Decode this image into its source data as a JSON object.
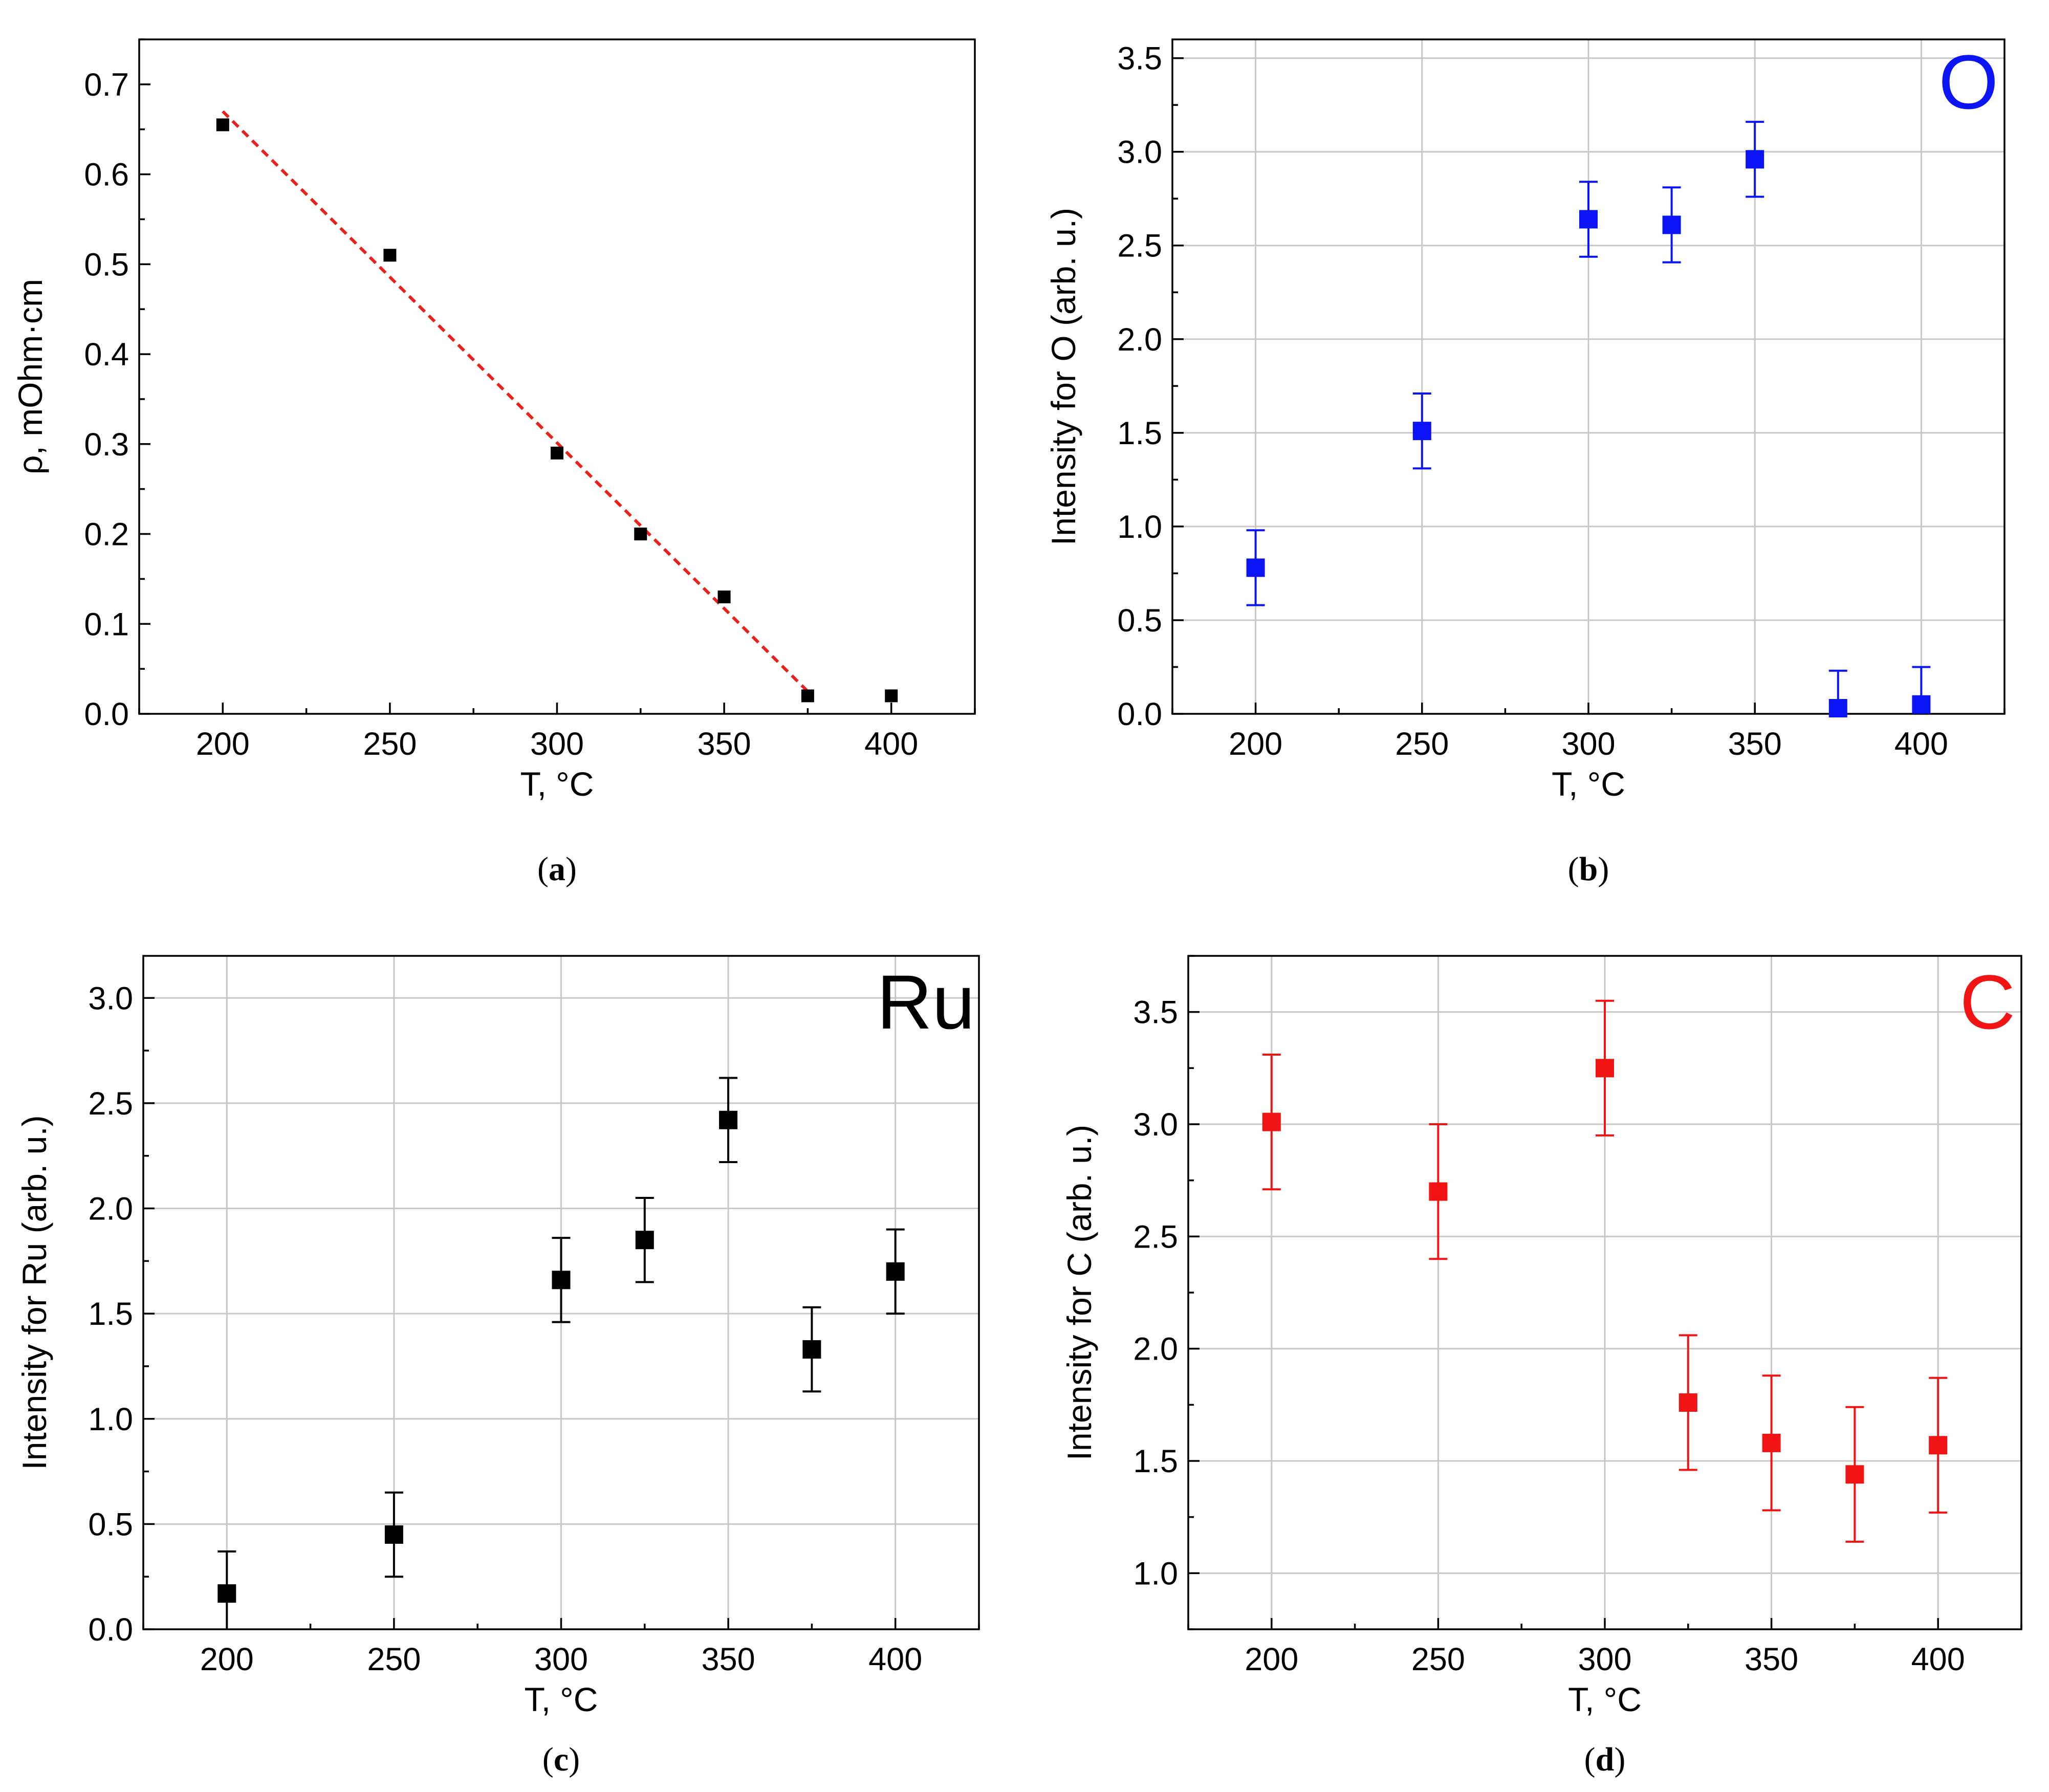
{
  "chart_data": [
    {
      "id": "a",
      "type": "scatter",
      "caption_letter": "a",
      "xlabel": "T, °C",
      "ylabel": "ρ, mOhm·cm",
      "xlim": [
        175,
        425
      ],
      "ylim": [
        0,
        0.75
      ],
      "xticks": [
        200,
        250,
        300,
        350,
        400
      ],
      "xtick_labels": [
        "200",
        "250",
        "300",
        "350",
        "400"
      ],
      "yticks": [
        0,
        0.1,
        0.2,
        0.3,
        0.4,
        0.5,
        0.6,
        0.7
      ],
      "ytick_labels": [
        "0.0",
        "0.1",
        "0.2",
        "0.3",
        "0.4",
        "0.5",
        "0.6",
        "0.7"
      ],
      "grid": false,
      "marker_color": "#000000",
      "series": [
        {
          "name": "resistivity",
          "x": [
            200,
            250,
            300,
            325,
            350,
            375,
            400
          ],
          "y": [
            0.655,
            0.51,
            0.29,
            0.2,
            0.13,
            0.02,
            0.02
          ]
        }
      ],
      "fit_line": {
        "x": [
          200,
          375
        ],
        "y": [
          0.67,
          0.025
        ],
        "color": "#e8211d",
        "style": "dashed"
      }
    },
    {
      "id": "b",
      "type": "scatter",
      "caption_letter": "b",
      "xlabel": "T, °C",
      "ylabel": "Intensity for O (arb. u.)",
      "element_label": "O",
      "xlim": [
        175,
        425
      ],
      "ylim": [
        0,
        3.6
      ],
      "xticks": [
        200,
        250,
        300,
        350,
        400
      ],
      "xtick_labels": [
        "200",
        "250",
        "300",
        "350",
        "400"
      ],
      "yticks": [
        0,
        0.5,
        1.0,
        1.5,
        2.0,
        2.5,
        3.0,
        3.5
      ],
      "ytick_labels": [
        "0.0",
        "0.5",
        "1.0",
        "1.5",
        "2.0",
        "2.5",
        "3.0",
        "3.5"
      ],
      "grid": true,
      "marker_color": "#0a14f5",
      "series": [
        {
          "name": "O",
          "x": [
            200,
            250,
            300,
            325,
            350,
            375,
            400
          ],
          "y": [
            0.78,
            1.51,
            2.64,
            2.61,
            2.96,
            0.03,
            0.05
          ],
          "err": [
            0.2,
            0.2,
            0.2,
            0.2,
            0.2,
            0.2,
            0.2
          ]
        }
      ]
    },
    {
      "id": "c",
      "type": "scatter",
      "caption_letter": "c",
      "xlabel": "T, °C",
      "ylabel": "Intensity for Ru (arb. u.)",
      "element_label": "Ru",
      "xlim": [
        175,
        425
      ],
      "ylim": [
        0,
        3.2
      ],
      "xticks": [
        200,
        250,
        300,
        350,
        400
      ],
      "xtick_labels": [
        "200",
        "250",
        "300",
        "350",
        "400"
      ],
      "yticks": [
        0,
        0.5,
        1.0,
        1.5,
        2.0,
        2.5,
        3.0
      ],
      "ytick_labels": [
        "0.0",
        "0.5",
        "1.0",
        "1.5",
        "2.0",
        "2.5",
        "3.0"
      ],
      "grid": true,
      "marker_color": "#000000",
      "series": [
        {
          "name": "Ru",
          "x": [
            200,
            250,
            300,
            325,
            350,
            375,
            400
          ],
          "y": [
            0.17,
            0.45,
            1.66,
            1.85,
            2.42,
            1.33,
            1.7
          ],
          "err": [
            0.2,
            0.2,
            0.2,
            0.2,
            0.2,
            0.2,
            0.2
          ]
        }
      ]
    },
    {
      "id": "d",
      "type": "scatter",
      "caption_letter": "d",
      "xlabel": "T, °C",
      "ylabel": "Intensity for C (arb. u.)",
      "element_label": "C",
      "xlim": [
        175,
        425
      ],
      "ylim": [
        0.75,
        3.75
      ],
      "xticks": [
        200,
        250,
        300,
        350,
        400
      ],
      "xtick_labels": [
        "200",
        "250",
        "300",
        "350",
        "400"
      ],
      "yticks": [
        1.0,
        1.5,
        2.0,
        2.5,
        3.0,
        3.5
      ],
      "ytick_labels": [
        "1.0",
        "1.5",
        "2.0",
        "2.5",
        "3.0",
        "3.5"
      ],
      "grid": true,
      "marker_color": "#f01414",
      "series": [
        {
          "name": "C",
          "x": [
            200,
            250,
            300,
            325,
            350,
            375,
            400
          ],
          "y": [
            3.01,
            2.7,
            3.25,
            1.76,
            1.58,
            1.44,
            1.57
          ],
          "err": [
            0.3,
            0.3,
            0.3,
            0.3,
            0.3,
            0.3,
            0.3
          ]
        }
      ]
    }
  ]
}
